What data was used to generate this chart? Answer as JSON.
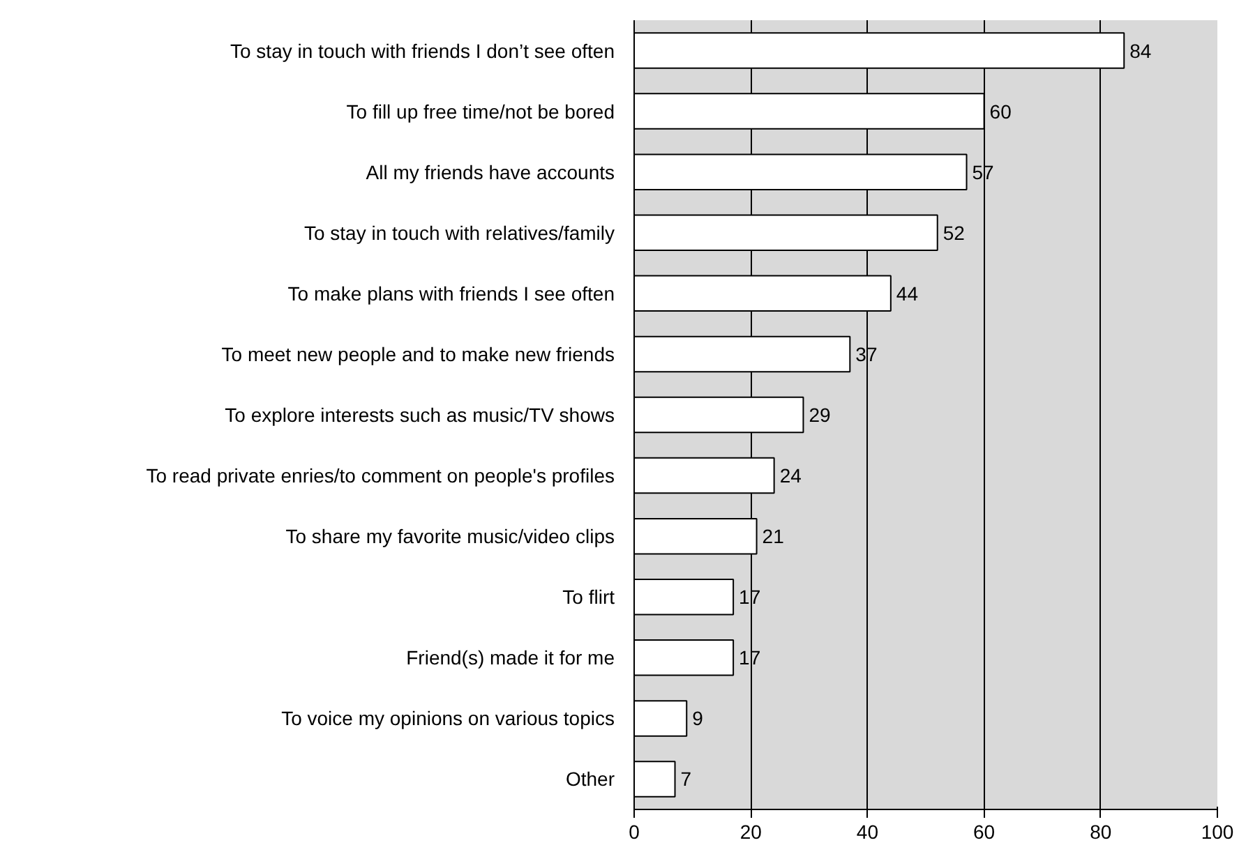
{
  "chart_data": {
    "type": "bar",
    "orientation": "horizontal",
    "categories": [
      "To stay in touch with friends I don’t see often",
      "To fill up free time/not be bored",
      "All my friends have accounts",
      "To stay in touch with relatives/family",
      "To make plans with friends I see often",
      "To meet new people and to make new friends",
      "To explore interests such as music/TV shows",
      "To read private enries/to comment on people's profiles",
      "To share my favorite music/video clips",
      "To flirt",
      "Friend(s) made it for me",
      "To voice my opinions on various topics",
      "Other"
    ],
    "values": [
      84,
      60,
      57,
      52,
      44,
      37,
      29,
      24,
      21,
      17,
      17,
      9,
      7
    ],
    "color": "#ffffff",
    "xlim": [
      0,
      100
    ],
    "xticks": [
      0,
      20,
      40,
      60,
      80,
      100
    ],
    "grid": "x",
    "data_labels": true
  }
}
